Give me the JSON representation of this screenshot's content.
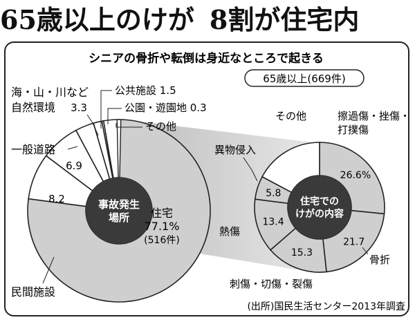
{
  "headline": {
    "part1": "65歳以上のけが",
    "part2": "8割が住宅内"
  },
  "subtitle": "シニアの骨折や転倒は身近なところで起きる",
  "badge": "65歳以上(669件)",
  "source": "(出所)国民生活センター2013年調査",
  "colors": {
    "house_slice": "#cfcfcf",
    "other_slice": "#ffffff",
    "center": "#3a3a3a",
    "outline": "#222222",
    "connector": "#9a9a9a"
  },
  "chart_data": [
    {
      "type": "pie",
      "center_label": [
        "事故発生",
        "場所"
      ],
      "unit": "%",
      "slices": [
        {
          "label": "住宅",
          "value": 77.1,
          "value_text": "77.1%",
          "count_text": "(516件)"
        },
        {
          "label": "民間施設",
          "value": 8.2,
          "value_text": "8.2"
        },
        {
          "label": "一般道路",
          "value": 6.9,
          "value_text": "6.9"
        },
        {
          "label": "海・山・川など自然環境",
          "label_lines": [
            "海・山・川など",
            "自然環境"
          ],
          "value": 3.3,
          "value_text": "3.3"
        },
        {
          "label": "公共施設",
          "value": 1.5,
          "value_text": "1.5"
        },
        {
          "label": "公園・遊園地",
          "value": 0.3,
          "value_text": "0.3"
        },
        {
          "label": "その他",
          "value": 2.7,
          "value_text": ""
        }
      ]
    },
    {
      "type": "pie",
      "center_label": [
        "住宅での",
        "けがの内容"
      ],
      "unit": "%",
      "slices": [
        {
          "label": "擦過傷・挫傷・打撲傷",
          "label_lines": [
            "擦過傷・挫傷・",
            "打撲傷"
          ],
          "value": 26.6,
          "value_text": "26.6%"
        },
        {
          "label": "骨折",
          "value": 21.7,
          "value_text": "21.7"
        },
        {
          "label": "刺傷・切傷・裂傷",
          "value": 15.3,
          "value_text": "15.3"
        },
        {
          "label": "熱傷",
          "value": 13.4,
          "value_text": "13.4"
        },
        {
          "label": "異物侵入",
          "value": 5.8,
          "value_text": "5.8"
        },
        {
          "label": "その他",
          "value": 17.2,
          "value_text": ""
        }
      ]
    }
  ]
}
